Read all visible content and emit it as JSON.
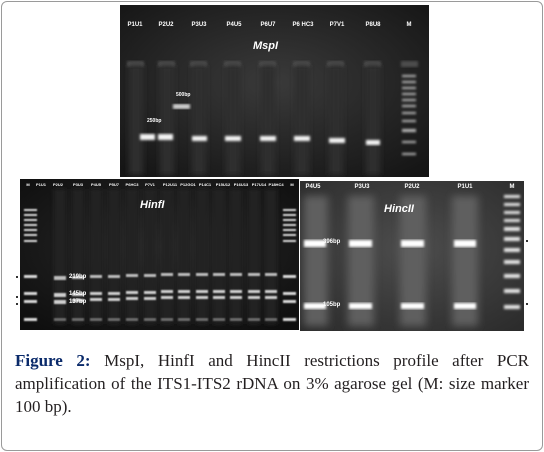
{
  "mspi": {
    "title": "MspI",
    "lanes": [
      "P1U1",
      "P2U2",
      "P3U3",
      "P4U5",
      "P6U7",
      "P6 HC3",
      "P7V1",
      "P8U8",
      "M"
    ],
    "bands": [
      "500bp",
      "250bp"
    ]
  },
  "hinfi": {
    "title": "HinfI",
    "lanes": [
      "M",
      "P1U1",
      "P2U2",
      "P3U3",
      "P4U5",
      "P5U7",
      "P6HC3",
      "P7V1",
      "P12U11",
      "P12GO1",
      "P14C1",
      "P15U12",
      "P16U13",
      "P17U14",
      "P18HC4",
      "M"
    ],
    "bands": [
      "219bp",
      "145bp",
      "137bp"
    ]
  },
  "hincii": {
    "title": "HincII",
    "lanes": [
      "P4U5",
      "P3U3",
      "P2U2",
      "P1U1",
      "M"
    ],
    "bands": [
      "396bp",
      "105bp"
    ]
  },
  "caption": {
    "label": "Figure 2:",
    "text": "MspI, HinfI and HincII restrictions profile after PCR amplification of the ITS1-ITS2 rDNA on 3% agarose gel (M: size marker 100 bp)."
  }
}
